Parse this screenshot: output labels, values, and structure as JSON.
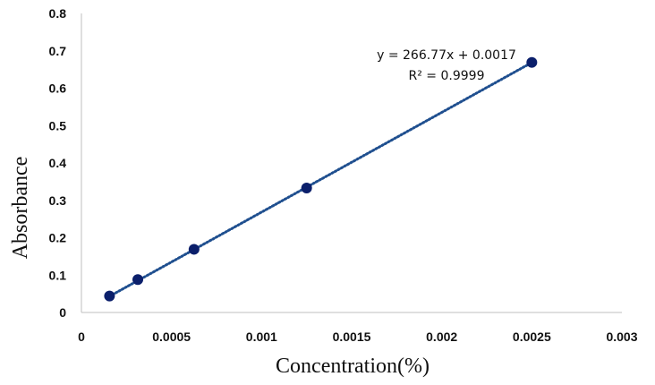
{
  "chart_data": {
    "type": "scatter",
    "title": "",
    "xlabel": "Concentration(%)",
    "ylabel": "Absorbance",
    "xlim": [
      0,
      0.003
    ],
    "ylim": [
      0,
      0.8
    ],
    "xticks": [
      "0",
      "0.0005",
      "0.001",
      "0.0015",
      "0.002",
      "0.0025",
      "0.003"
    ],
    "yticks": [
      "0",
      "0.1",
      "0.2",
      "0.3",
      "0.4",
      "0.5",
      "0.6",
      "0.7",
      "0.8"
    ],
    "grid": false,
    "legend": "none",
    "series": [
      {
        "x": [
          0.000156,
          0.000313,
          0.000625,
          0.00125,
          0.0025
        ],
        "y": [
          0.044,
          0.088,
          0.169,
          0.333,
          0.669
        ],
        "color": "#0b1f6b"
      }
    ],
    "trendline": {
      "type": "linear",
      "slope": 266.77,
      "intercept": 0.0017,
      "style": "dotted",
      "color": "#1f4f8f",
      "equation_label": "y = 266.77x + 0.0017",
      "r2_label": "R² = 0.9999"
    }
  }
}
